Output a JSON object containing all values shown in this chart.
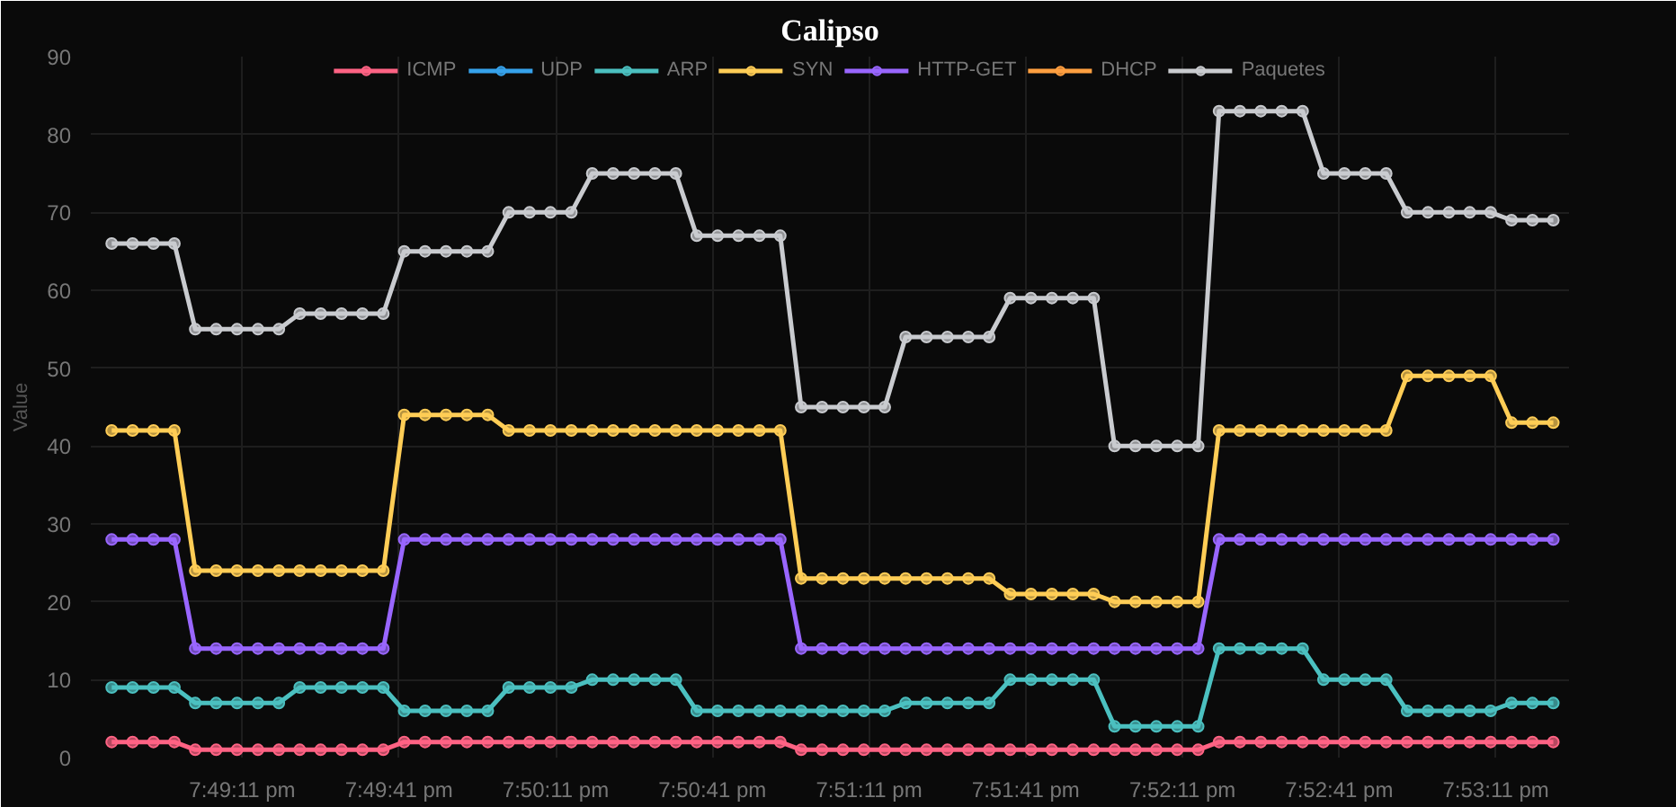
{
  "chart_data": {
    "type": "line",
    "title": "Calipso",
    "ylabel": "Value",
    "x": [
      19.812778,
      19.813889,
      19.815,
      19.816111,
      19.817222,
      19.818333,
      19.819444,
      19.820556,
      19.821667,
      19.822778,
      19.823889,
      19.825,
      19.826111,
      19.827222,
      19.828333,
      19.829444,
      19.830556,
      19.831667,
      19.832778,
      19.833889,
      19.835,
      19.836111,
      19.837222,
      19.838333,
      19.839444,
      19.840556,
      19.841667,
      19.842778,
      19.843889,
      19.845,
      19.846111,
      19.847222,
      19.848333,
      19.849444,
      19.850556,
      19.851667,
      19.852778,
      19.853889,
      19.855,
      19.856111,
      19.857222,
      19.858333,
      19.859444,
      19.860556,
      19.861667,
      19.862778,
      19.863889,
      19.865,
      19.866111,
      19.867222,
      19.868333,
      19.869444,
      19.870556,
      19.871667,
      19.872778,
      19.873889,
      19.875,
      19.876111,
      19.877222,
      19.878333,
      19.879444,
      19.880556,
      19.881667,
      19.882778,
      19.883889,
      19.885,
      19.886111,
      19.887222,
      19.888333,
      19.889444
    ],
    "xlim": [
      19.811667,
      19.890278
    ],
    "xticks": [
      {
        "value": 19.819722,
        "label": "7:49:11 pm"
      },
      {
        "value": 19.828056,
        "label": "7:49:41 pm"
      },
      {
        "value": 19.836389,
        "label": "7:50:11 pm"
      },
      {
        "value": 19.844722,
        "label": "7:50:41 pm"
      },
      {
        "value": 19.853056,
        "label": "7:51:11 pm"
      },
      {
        "value": 19.861389,
        "label": "7:51:41 pm"
      },
      {
        "value": 19.869722,
        "label": "7:52:11 pm"
      },
      {
        "value": 19.878056,
        "label": "7:52:41 pm"
      },
      {
        "value": 19.886389,
        "label": "7:53:11 pm"
      }
    ],
    "ylim": [
      0,
      90
    ],
    "yticks": [
      0,
      10,
      20,
      30,
      40,
      50,
      60,
      70,
      80,
      90
    ],
    "grid": true,
    "legend": "top",
    "marker": "circle",
    "line_style": "solid",
    "series": [
      {
        "name": "ICMP",
        "color": "#ff6384",
        "values": [
          2,
          2,
          2,
          2,
          1,
          1,
          1,
          1,
          1,
          1,
          1,
          1,
          1,
          1,
          2,
          2,
          2,
          2,
          2,
          2,
          2,
          2,
          2,
          2,
          2,
          2,
          2,
          2,
          2,
          2,
          2,
          2,
          2,
          1,
          1,
          1,
          1,
          1,
          1,
          1,
          1,
          1,
          1,
          1,
          1,
          1,
          1,
          1,
          1,
          1,
          1,
          1,
          1,
          2,
          2,
          2,
          2,
          2,
          2,
          2,
          2,
          2,
          2,
          2,
          2,
          2,
          2,
          2,
          2,
          2
        ]
      },
      {
        "name": "UDP",
        "color": "#36a2eb",
        "values": [
          null,
          null,
          null,
          null,
          null,
          null,
          null,
          null,
          null,
          null,
          null,
          null,
          null,
          null,
          null,
          null,
          null,
          null,
          null,
          null,
          null,
          null,
          null,
          null,
          null,
          null,
          null,
          null,
          null,
          null,
          null,
          null,
          null,
          null,
          null,
          null,
          null,
          null,
          null,
          null,
          null,
          null,
          null,
          null,
          null,
          null,
          null,
          null,
          null,
          null,
          null,
          null,
          null,
          null,
          null,
          null,
          null,
          null,
          null,
          null,
          null,
          null,
          null,
          null,
          null,
          null,
          null,
          null,
          null,
          null
        ]
      },
      {
        "name": "ARP",
        "color": "#4bc0c0",
        "values": [
          9,
          9,
          9,
          9,
          7,
          7,
          7,
          7,
          7,
          9,
          9,
          9,
          9,
          9,
          6,
          6,
          6,
          6,
          6,
          9,
          9,
          9,
          9,
          10,
          10,
          10,
          10,
          10,
          6,
          6,
          6,
          6,
          6,
          6,
          6,
          6,
          6,
          6,
          7,
          7,
          7,
          7,
          7,
          10,
          10,
          10,
          10,
          10,
          4,
          4,
          4,
          4,
          4,
          14,
          14,
          14,
          14,
          14,
          10,
          10,
          10,
          10,
          6,
          6,
          6,
          6,
          6,
          7,
          7,
          7
        ]
      },
      {
        "name": "SYN",
        "color": "#ffcd56",
        "values": [
          42,
          42,
          42,
          42,
          24,
          24,
          24,
          24,
          24,
          24,
          24,
          24,
          24,
          24,
          44,
          44,
          44,
          44,
          44,
          42,
          42,
          42,
          42,
          42,
          42,
          42,
          42,
          42,
          42,
          42,
          42,
          42,
          42,
          23,
          23,
          23,
          23,
          23,
          23,
          23,
          23,
          23,
          23,
          21,
          21,
          21,
          21,
          21,
          20,
          20,
          20,
          20,
          20,
          42,
          42,
          42,
          42,
          42,
          42,
          42,
          42,
          42,
          49,
          49,
          49,
          49,
          49,
          43,
          43,
          43
        ]
      },
      {
        "name": "HTTP-GET",
        "color": "#9966ff",
        "values": [
          28,
          28,
          28,
          28,
          14,
          14,
          14,
          14,
          14,
          14,
          14,
          14,
          14,
          14,
          28,
          28,
          28,
          28,
          28,
          28,
          28,
          28,
          28,
          28,
          28,
          28,
          28,
          28,
          28,
          28,
          28,
          28,
          28,
          14,
          14,
          14,
          14,
          14,
          14,
          14,
          14,
          14,
          14,
          14,
          14,
          14,
          14,
          14,
          14,
          14,
          14,
          14,
          14,
          28,
          28,
          28,
          28,
          28,
          28,
          28,
          28,
          28,
          28,
          28,
          28,
          28,
          28,
          28,
          28,
          28
        ]
      },
      {
        "name": "DHCP",
        "color": "#ff9f40",
        "values": [
          null,
          null,
          null,
          null,
          null,
          null,
          null,
          null,
          null,
          null,
          null,
          null,
          null,
          null,
          null,
          null,
          null,
          null,
          null,
          null,
          null,
          null,
          null,
          null,
          null,
          null,
          null,
          null,
          null,
          null,
          null,
          null,
          null,
          null,
          null,
          null,
          null,
          null,
          null,
          null,
          null,
          null,
          null,
          null,
          null,
          null,
          null,
          null,
          null,
          null,
          null,
          null,
          null,
          null,
          null,
          null,
          null,
          null,
          null,
          null,
          null,
          null,
          null,
          null,
          null,
          null,
          null,
          null,
          null,
          null
        ]
      },
      {
        "name": "Paquetes",
        "color": "#c9cbcf",
        "values": [
          66,
          66,
          66,
          66,
          55,
          55,
          55,
          55,
          55,
          57,
          57,
          57,
          57,
          57,
          65,
          65,
          65,
          65,
          65,
          70,
          70,
          70,
          70,
          75,
          75,
          75,
          75,
          75,
          67,
          67,
          67,
          67,
          67,
          45,
          45,
          45,
          45,
          45,
          54,
          54,
          54,
          54,
          54,
          59,
          59,
          59,
          59,
          59,
          40,
          40,
          40,
          40,
          40,
          83,
          83,
          83,
          83,
          83,
          75,
          75,
          75,
          75,
          70,
          70,
          70,
          70,
          70,
          69,
          69,
          69
        ]
      }
    ]
  }
}
